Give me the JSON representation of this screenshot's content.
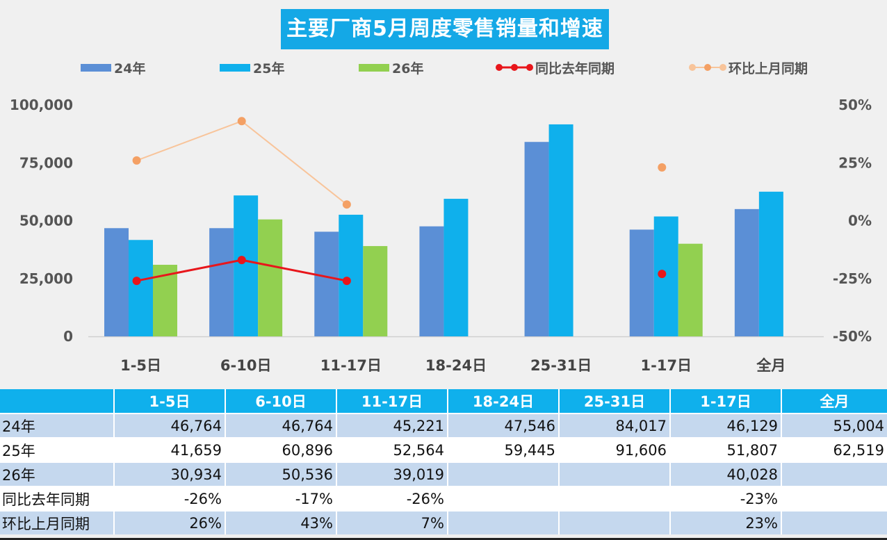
{
  "chart_data": {
    "type": "bar",
    "title": "主要厂商5月周度零售销量和增速",
    "categories": [
      "1-5日",
      "6-10日",
      "11-17日",
      "18-24日",
      "25-31日",
      "1-17日",
      "全月"
    ],
    "series": [
      {
        "name": "24年",
        "type": "bar",
        "axis": "left",
        "color": "#5b8fd6",
        "values": [
          46764,
          46764,
          45221,
          47546,
          84017,
          46129,
          55004
        ]
      },
      {
        "name": "25年",
        "type": "bar",
        "axis": "left",
        "color": "#0fb0ec",
        "values": [
          41659,
          60896,
          52564,
          59445,
          91606,
          51807,
          62519
        ]
      },
      {
        "name": "26年",
        "type": "bar",
        "axis": "left",
        "color": "#92d050",
        "values": [
          30934,
          50536,
          39019,
          null,
          null,
          40028,
          null
        ]
      },
      {
        "name": "同比去年同期",
        "type": "line",
        "axis": "right",
        "color": "#e8161b",
        "values": [
          -26,
          -17,
          -26,
          null,
          null,
          -23,
          null
        ]
      },
      {
        "name": "环比上月同期",
        "type": "line",
        "axis": "right",
        "color": "#f4a064",
        "lineColor": "#f8c49a",
        "values": [
          26,
          43,
          7,
          null,
          null,
          23,
          null
        ]
      }
    ],
    "left_axis": {
      "min": 0,
      "max": 100000,
      "ticks": [
        "0",
        "25,000",
        "50,000",
        "75,000",
        "100,000"
      ]
    },
    "right_axis": {
      "min": -50,
      "max": 50,
      "ticks": [
        "-50%",
        "-25%",
        "0%",
        "25%",
        "50%"
      ]
    },
    "grid": false,
    "legend": "top"
  },
  "table": {
    "headers": [
      "1-5日",
      "6-10日",
      "11-17日",
      "18-24日",
      "25-31日",
      "1-17日",
      "全月"
    ],
    "rows": [
      {
        "label": "24年",
        "cells": [
          "46,764",
          "46,764",
          "45,221",
          "47,546",
          "84,017",
          "46,129",
          "55,004"
        ]
      },
      {
        "label": "25年",
        "cells": [
          "41,659",
          "60,896",
          "52,564",
          "59,445",
          "91,606",
          "51,807",
          "62,519"
        ]
      },
      {
        "label": "26年",
        "cells": [
          "30,934",
          "50,536",
          "39,019",
          "",
          "",
          "40,028",
          ""
        ]
      },
      {
        "label": "同比去年同期",
        "cells": [
          "-26%",
          "-17%",
          "-26%",
          "",
          "",
          "-23%",
          ""
        ]
      },
      {
        "label": "环比上月同期",
        "cells": [
          "26%",
          "43%",
          "7%",
          "",
          "",
          "23%",
          ""
        ]
      }
    ]
  }
}
